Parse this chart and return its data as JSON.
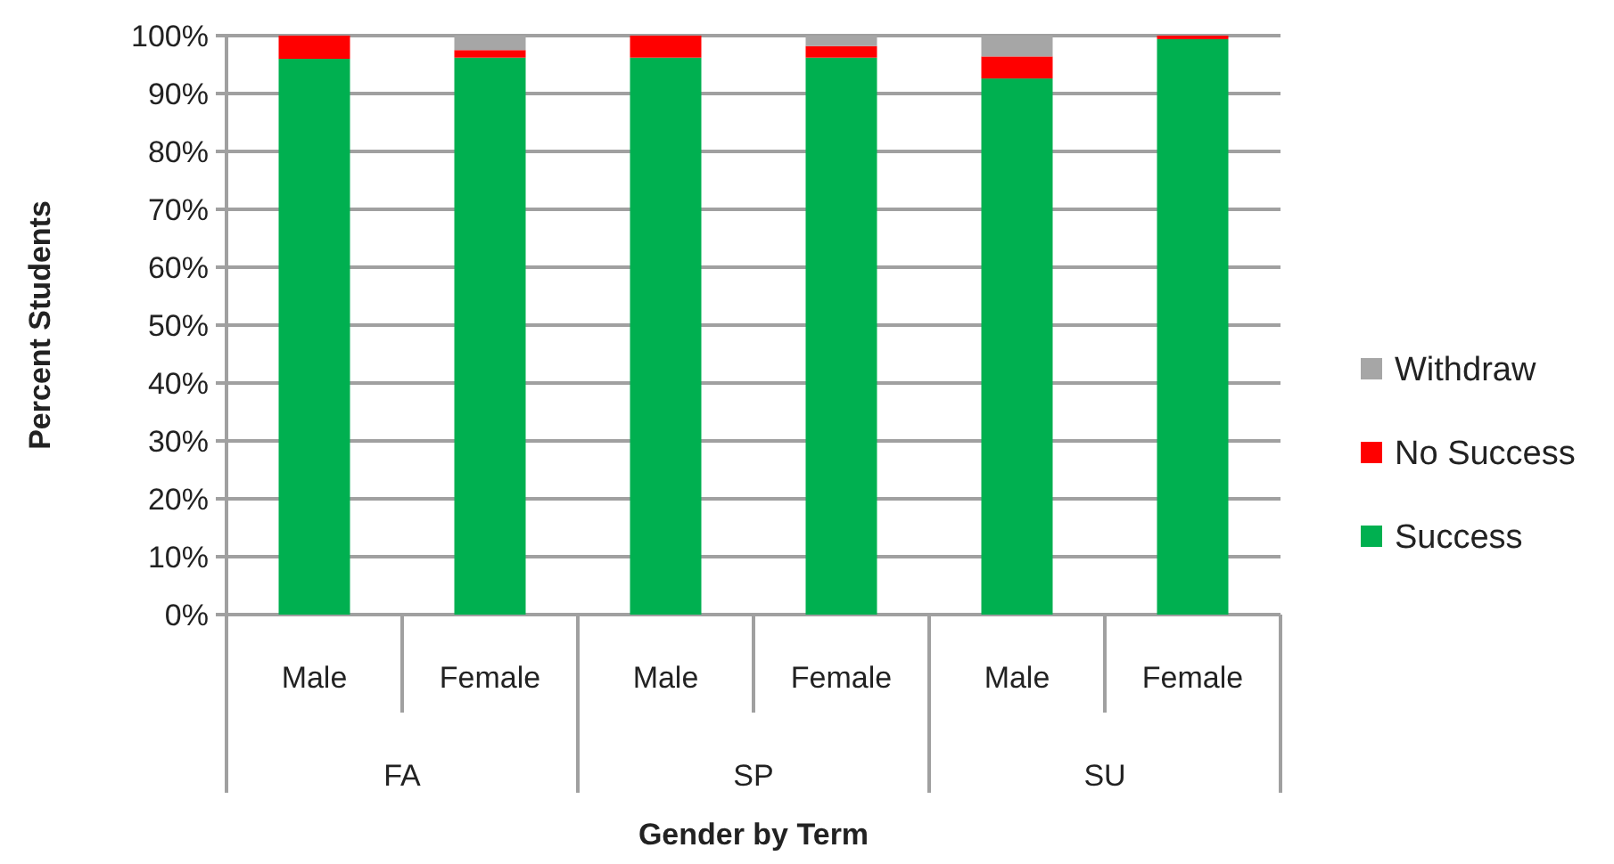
{
  "chart_data": {
    "type": "bar",
    "stacked": true,
    "xlabel": "Gender by Term",
    "ylabel": "Percent Students",
    "categories": [
      "Male",
      "Female",
      "Male",
      "Female",
      "Male",
      "Female"
    ],
    "annotations": [
      "FA",
      "SP",
      "SU"
    ],
    "series": [
      {
        "name": "Success",
        "color": "#00b050",
        "values": [
          96,
          96.2,
          96.2,
          96.2,
          92.6,
          99.4
        ]
      },
      {
        "name": "No Success",
        "color": "#ff0000",
        "values": [
          4,
          1.3,
          3.8,
          2,
          3.8,
          0.6
        ]
      },
      {
        "name": "Withdraw",
        "color": "#a6a6a6",
        "values": [
          0,
          2.5,
          0,
          1.8,
          3.6,
          0
        ]
      }
    ],
    "ylim": [
      0,
      100
    ],
    "yticks": [
      {
        "value": 0,
        "label": "0%"
      },
      {
        "value": 10,
        "label": "10%"
      },
      {
        "value": 20,
        "label": "20%"
      },
      {
        "value": 30,
        "label": "30%"
      },
      {
        "value": 40,
        "label": "40%"
      },
      {
        "value": 50,
        "label": "50%"
      },
      {
        "value": 60,
        "label": "60%"
      },
      {
        "value": 70,
        "label": "70%"
      },
      {
        "value": 80,
        "label": "80%"
      },
      {
        "value": 90,
        "label": "90%"
      },
      {
        "value": 100,
        "label": "100%"
      }
    ],
    "grid": "y",
    "legend": "right"
  }
}
